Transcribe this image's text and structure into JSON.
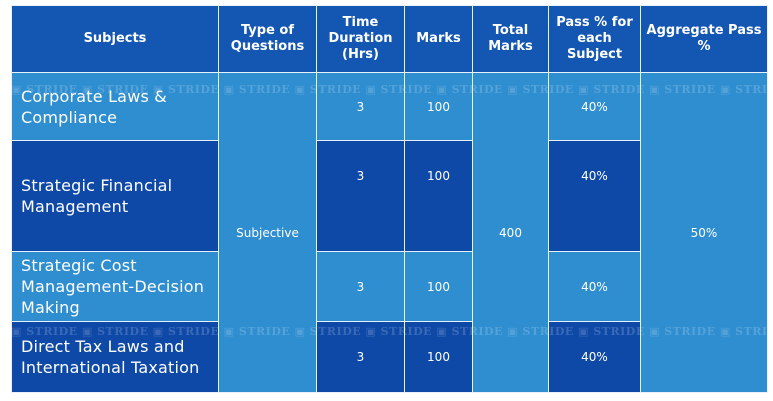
{
  "headers": {
    "subjects": "Subjects",
    "type": "Type of Questions",
    "time": "Time Duration (Hrs)",
    "marks": "Marks",
    "total": "Total Marks",
    "pass_subject": "Pass % for each Subject",
    "aggregate": "Aggregate Pass %"
  },
  "rows": [
    {
      "subject": "Corporate Laws & Compliance",
      "time": "3",
      "marks": "100",
      "pass": "40%"
    },
    {
      "subject": "Strategic Financial Management",
      "time": "3",
      "marks": "100",
      "pass": "40%"
    },
    {
      "subject": "Strategic Cost Management-Decision Making",
      "time": "3",
      "marks": "100",
      "pass": "40%"
    },
    {
      "subject": "Direct Tax Laws and International Taxation",
      "time": "3",
      "marks": "100",
      "pass": "40%"
    }
  ],
  "type_of_questions": "Subjective",
  "total_marks": "400",
  "aggregate_pass": "50%",
  "watermark": "STRIDE",
  "colors": {
    "header": "#1457b3",
    "light_cell": "#2f8ed0",
    "dark_cell": "#0f49a8"
  }
}
